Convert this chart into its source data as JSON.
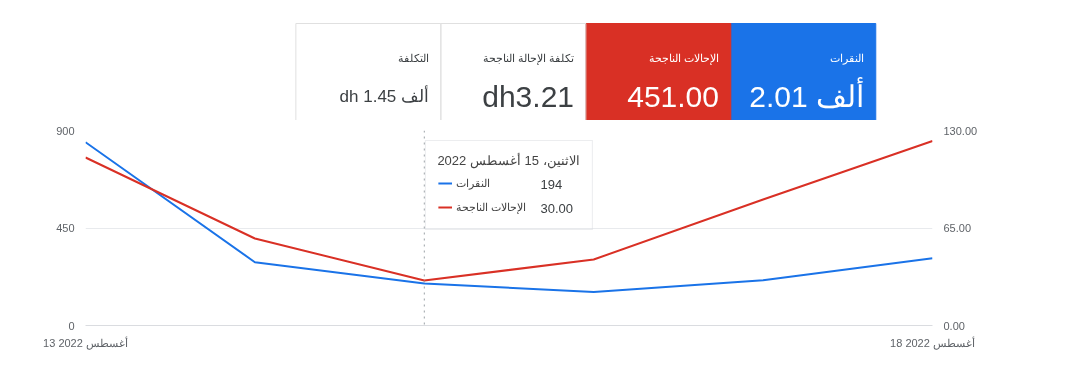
{
  "chart_data": [
    {
      "type": "other",
      "categories": [
        "النقرات",
        "الإحالات الناجحة",
        "تكلفة الإحالة الناجحة",
        "التكلفة"
      ],
      "annotations": [
        "2.01 ألف",
        "451.00",
        "dh3.21",
        "dh 1.45 ألف"
      ],
      "colors": [
        "#1a73e8",
        "#d93025",
        "#ffffff",
        "#ffffff"
      ]
    },
    {
      "type": "line",
      "x": [
        "2022-08-13",
        "2022-08-14",
        "2022-08-15",
        "2022-08-16",
        "2022-08-17",
        "2022-08-18"
      ],
      "series": [
        {
          "name": "النقرات",
          "color": "#1a73e8",
          "values": [
            846,
            292,
            194,
            155,
            209,
            310
          ]
        },
        {
          "name": "الإحالات الناجحة",
          "color": "#d93025",
          "axis": "y2",
          "values": [
            112,
            58,
            30,
            44,
            84,
            123
          ]
        }
      ],
      "xlim": [
        "2022-08-13",
        "2022-08-18"
      ],
      "xticks": [
        {
          "value": "2022-08-13",
          "label": "13 أغسطس 2022"
        },
        {
          "value": "2022-08-18",
          "label": "18 أغسطس 2022"
        }
      ],
      "ylim": [
        0,
        900
      ],
      "yticks": [
        0,
        450,
        900
      ],
      "y2lim": [
        0,
        130
      ],
      "y2ticks": [
        {
          "value": 0,
          "label": "0.00"
        },
        {
          "value": 65,
          "label": "65.00"
        },
        {
          "value": 130,
          "label": "130.00"
        }
      ],
      "grid": "y",
      "legend": "top",
      "legend_title": "الاثنين، 15 أغسطس 2022",
      "marker": "none",
      "line_style": "solid",
      "ref_lines": [
        {
          "axis": "x",
          "value": "2022-08-15",
          "color": "#9aa0a6",
          "line_style": "dotted"
        }
      ],
      "annotations": [
        "194",
        "30.00"
      ]
    }
  ]
}
